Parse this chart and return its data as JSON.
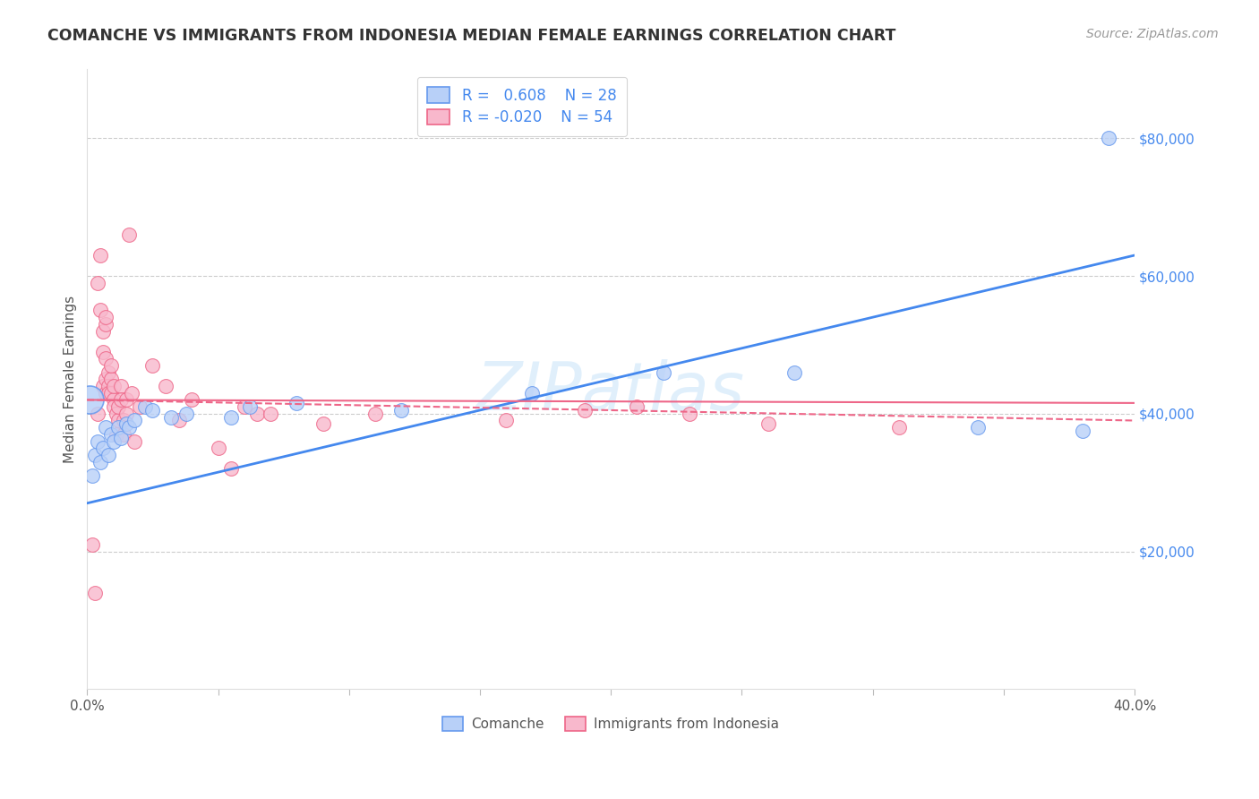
{
  "title": "COMANCHE VS IMMIGRANTS FROM INDONESIA MEDIAN FEMALE EARNINGS CORRELATION CHART",
  "source": "Source: ZipAtlas.com",
  "ylabel": "Median Female Earnings",
  "yticks": [
    20000,
    40000,
    60000,
    80000
  ],
  "ytick_labels": [
    "$20,000",
    "$40,000",
    "$60,000",
    "$80,000"
  ],
  "watermark": "ZIPatlas",
  "legend_R_comanche": "0.608",
  "legend_N_comanche": "28",
  "legend_R_indonesia": "-0.020",
  "legend_N_indonesia": "54",
  "comanche_fill": "#b8d0f8",
  "comanche_edge": "#6699ee",
  "indonesia_fill": "#f8b8cc",
  "indonesia_edge": "#ee6688",
  "line_blue": "#4488ee",
  "line_pink": "#ee6688",
  "comanche_points": [
    [
      0.002,
      31000
    ],
    [
      0.003,
      34000
    ],
    [
      0.004,
      36000
    ],
    [
      0.005,
      33000
    ],
    [
      0.006,
      35000
    ],
    [
      0.007,
      38000
    ],
    [
      0.008,
      34000
    ],
    [
      0.009,
      37000
    ],
    [
      0.01,
      36000
    ],
    [
      0.012,
      38000
    ],
    [
      0.013,
      36500
    ],
    [
      0.015,
      38500
    ],
    [
      0.016,
      38000
    ],
    [
      0.018,
      39000
    ],
    [
      0.022,
      41000
    ],
    [
      0.025,
      40500
    ],
    [
      0.032,
      39500
    ],
    [
      0.038,
      40000
    ],
    [
      0.055,
      39500
    ],
    [
      0.062,
      41000
    ],
    [
      0.08,
      41500
    ],
    [
      0.12,
      40500
    ],
    [
      0.17,
      43000
    ],
    [
      0.22,
      46000
    ],
    [
      0.27,
      46000
    ],
    [
      0.34,
      38000
    ],
    [
      0.38,
      37500
    ],
    [
      0.39,
      80000
    ]
  ],
  "comanche_large_point": [
    0.001,
    42000
  ],
  "comanche_large_size": 500,
  "indonesia_points": [
    [
      0.002,
      21000
    ],
    [
      0.003,
      14000
    ],
    [
      0.004,
      40000
    ],
    [
      0.004,
      59000
    ],
    [
      0.005,
      55000
    ],
    [
      0.005,
      63000
    ],
    [
      0.006,
      49000
    ],
    [
      0.006,
      44000
    ],
    [
      0.006,
      52000
    ],
    [
      0.007,
      43000
    ],
    [
      0.007,
      45000
    ],
    [
      0.007,
      48000
    ],
    [
      0.007,
      53000
    ],
    [
      0.007,
      54000
    ],
    [
      0.008,
      46000
    ],
    [
      0.008,
      44000
    ],
    [
      0.008,
      43000
    ],
    [
      0.009,
      45000
    ],
    [
      0.009,
      43000
    ],
    [
      0.009,
      47000
    ],
    [
      0.01,
      42000
    ],
    [
      0.01,
      41000
    ],
    [
      0.01,
      44000
    ],
    [
      0.011,
      40000
    ],
    [
      0.011,
      37000
    ],
    [
      0.012,
      39000
    ],
    [
      0.012,
      41000
    ],
    [
      0.013,
      44000
    ],
    [
      0.013,
      42000
    ],
    [
      0.014,
      39000
    ],
    [
      0.014,
      37000
    ],
    [
      0.015,
      42000
    ],
    [
      0.015,
      40000
    ],
    [
      0.016,
      66000
    ],
    [
      0.017,
      43000
    ],
    [
      0.018,
      36000
    ],
    [
      0.02,
      41000
    ],
    [
      0.025,
      47000
    ],
    [
      0.03,
      44000
    ],
    [
      0.035,
      39000
    ],
    [
      0.04,
      42000
    ],
    [
      0.05,
      35000
    ],
    [
      0.055,
      32000
    ],
    [
      0.06,
      41000
    ],
    [
      0.065,
      40000
    ],
    [
      0.07,
      40000
    ],
    [
      0.09,
      38500
    ],
    [
      0.11,
      40000
    ],
    [
      0.16,
      39000
    ],
    [
      0.19,
      40500
    ],
    [
      0.21,
      41000
    ],
    [
      0.23,
      40000
    ],
    [
      0.26,
      38500
    ],
    [
      0.31,
      38000
    ]
  ],
  "xlim": [
    0,
    0.4
  ],
  "ylim": [
    0,
    90000
  ],
  "blue_line_x": [
    0.0,
    0.4
  ],
  "blue_line_y": [
    27000,
    63000
  ],
  "pink_line_x": [
    0.0,
    0.4
  ],
  "pink_line_y": [
    42000,
    39000
  ]
}
